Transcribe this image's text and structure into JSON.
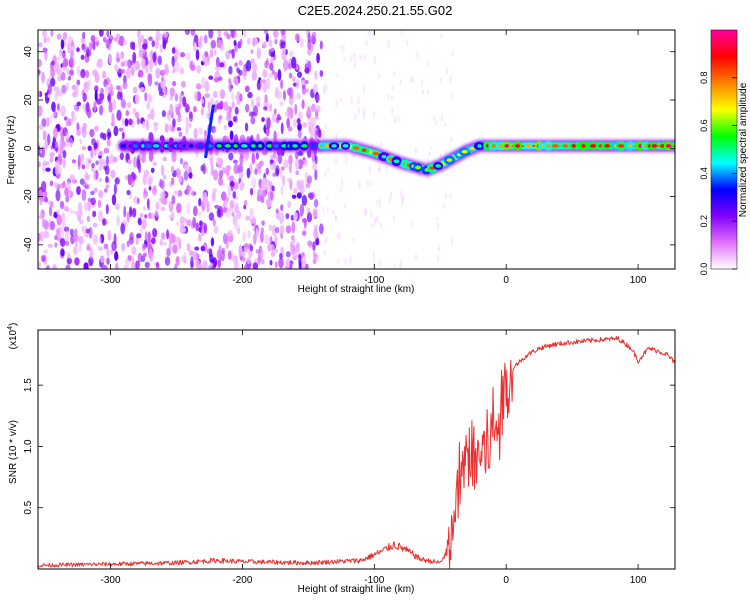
{
  "title": "C2E5.2024.250.21.55.G02",
  "chart_data": [
    {
      "type": "heatmap",
      "xlabel": "Height of straight line (km)",
      "ylabel": "Frequency (Hz)",
      "xlim": [
        -355,
        128
      ],
      "ylim": [
        -50,
        49
      ],
      "xticks": [
        -300,
        -200,
        -100,
        0,
        100
      ],
      "yticks": [
        -40,
        -20,
        0,
        20,
        40
      ],
      "colorbar": {
        "label": "Normalized spectral amplitude",
        "range": [
          0,
          1
        ],
        "ticks": [
          0.0,
          0.2,
          0.4,
          0.6,
          0.8
        ],
        "tick_labels": [
          "0.0",
          "0.2",
          "0.4",
          "0.6",
          "0.8"
        ],
        "colormap": [
          "#ffffff",
          "#e070ff",
          "#8000ff",
          "#0000ff",
          "#00ffff",
          "#00ff00",
          "#ffff00",
          "#ff8000",
          "#ff0000",
          "#ff00a0"
        ]
      },
      "noise_region_x": [
        -355,
        -140
      ],
      "dominant_frequency": {
        "x": [
          -290,
          -220,
          -140,
          -120,
          -100,
          -80,
          -60,
          -50,
          -40,
          -30,
          -20,
          0,
          50,
          100,
          128
        ],
        "y": [
          1,
          1,
          1,
          1,
          -2,
          -6,
          -9,
          -7,
          -4,
          -1,
          1,
          1,
          1,
          1,
          1
        ]
      },
      "grid": false
    },
    {
      "type": "line",
      "xlabel": "Height of straight line (km)",
      "ylabel": "SNR (10 * v/v)",
      "y_multiplier": "(x10",
      "y_multiplier_exp": "4",
      "y_multiplier_close": ")",
      "xlim": [
        -355,
        128
      ],
      "ylim": [
        0,
        1.95
      ],
      "xticks": [
        -300,
        -200,
        -100,
        0,
        100
      ],
      "yticks": [
        0.5,
        1.0,
        1.5
      ],
      "ytick_labels": [
        "0.5",
        "1.0",
        "1.5"
      ],
      "series": [
        {
          "color": "#e83030",
          "x": [
            -355,
            -300,
            -250,
            -220,
            -200,
            -150,
            -110,
            -95,
            -85,
            -75,
            -65,
            -50,
            -42,
            -38,
            -34,
            -30,
            -27,
            -24,
            -20,
            -15,
            -10,
            -6,
            -3,
            0,
            3,
            8,
            13,
            18,
            25,
            35,
            50,
            70,
            85,
            95,
            100,
            108,
            115,
            122,
            128
          ],
          "values": [
            0.03,
            0.04,
            0.05,
            0.07,
            0.06,
            0.05,
            0.07,
            0.14,
            0.2,
            0.15,
            0.08,
            0.05,
            0.2,
            0.55,
            0.75,
            0.9,
            1.0,
            0.85,
            0.95,
            1.0,
            1.1,
            1.2,
            1.35,
            1.5,
            1.6,
            1.67,
            1.72,
            1.76,
            1.8,
            1.83,
            1.85,
            1.87,
            1.88,
            1.8,
            1.7,
            1.8,
            1.78,
            1.75,
            1.68
          ]
        }
      ],
      "grid": false
    }
  ]
}
